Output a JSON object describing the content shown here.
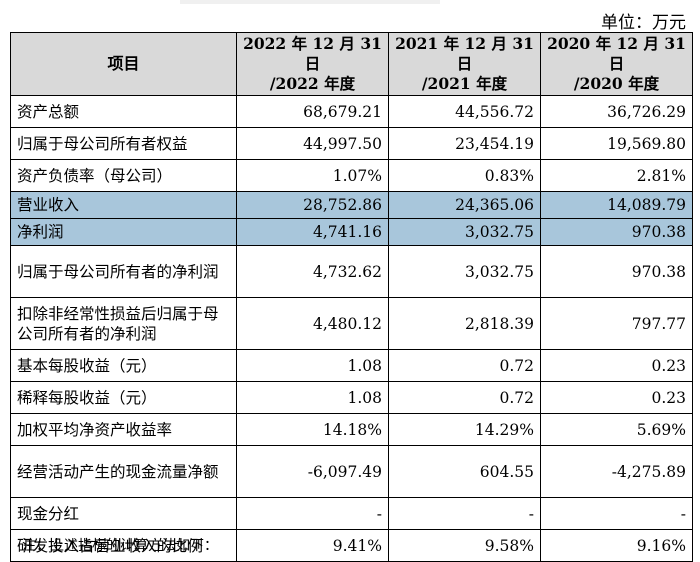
{
  "unit_label": "单位：万元",
  "header": {
    "item": "项目",
    "periods": [
      {
        "line1": "2022 年 12 月 31 日",
        "line2": "/2022 年度"
      },
      {
        "line1": "2021 年 12 月 31 日",
        "line2": "/2021 年度"
      },
      {
        "line1": "2020 年 12 月 31 日",
        "line2": "/2020 年度"
      }
    ]
  },
  "rows": [
    {
      "label": "资产总额",
      "values": [
        "68,679.21",
        "44,556.72",
        "36,726.29"
      ],
      "highlight": false,
      "tall": false
    },
    {
      "label": "归属于母公司所有者权益",
      "values": [
        "44,997.50",
        "23,454.19",
        "19,569.80"
      ],
      "highlight": false,
      "tall": false
    },
    {
      "label": "资产负债率（母公司）",
      "values": [
        "1.07%",
        "0.83%",
        "2.81%"
      ],
      "highlight": false,
      "tall": false
    },
    {
      "label": "营业收入",
      "values": [
        "28,752.86",
        "24,365.06",
        "14,089.79"
      ],
      "highlight": true,
      "tall": false
    },
    {
      "label": "净利润",
      "values": [
        "4,741.16",
        "3,032.75",
        "970.38"
      ],
      "highlight": true,
      "tall": false
    },
    {
      "label": "归属于母公司所有者的净利润",
      "values": [
        "4,732.62",
        "3,032.75",
        "970.38"
      ],
      "highlight": false,
      "tall": true
    },
    {
      "label": "扣除非经常性损益后归属于母公司所有者的净利润",
      "values": [
        "4,480.12",
        "2,818.39",
        "797.77"
      ],
      "highlight": false,
      "tall": true
    },
    {
      "label": "基本每股收益（元）",
      "values": [
        "1.08",
        "0.72",
        "0.23"
      ],
      "highlight": false,
      "tall": false
    },
    {
      "label": "稀释每股收益（元）",
      "values": [
        "1.08",
        "0.72",
        "0.23"
      ],
      "highlight": false,
      "tall": false
    },
    {
      "label": "加权平均净资产收益率",
      "values": [
        "14.18%",
        "14.29%",
        "5.69%"
      ],
      "highlight": false,
      "tall": false
    },
    {
      "label": "经营活动产生的现金流量净额",
      "values": [
        "-6,097.49",
        "604.55",
        "-4,275.89"
      ],
      "highlight": false,
      "tall": true
    },
    {
      "label": "现金分红",
      "values": [
        "-",
        "-",
        "-"
      ],
      "highlight": false,
      "tall": false
    },
    {
      "label": "研发投入占营业收入的比例",
      "values": [
        "9.41%",
        "9.58%",
        "9.16%"
      ],
      "highlight": false,
      "tall": false
    }
  ],
  "note": "注：上述指标的计算方法如下："
}
